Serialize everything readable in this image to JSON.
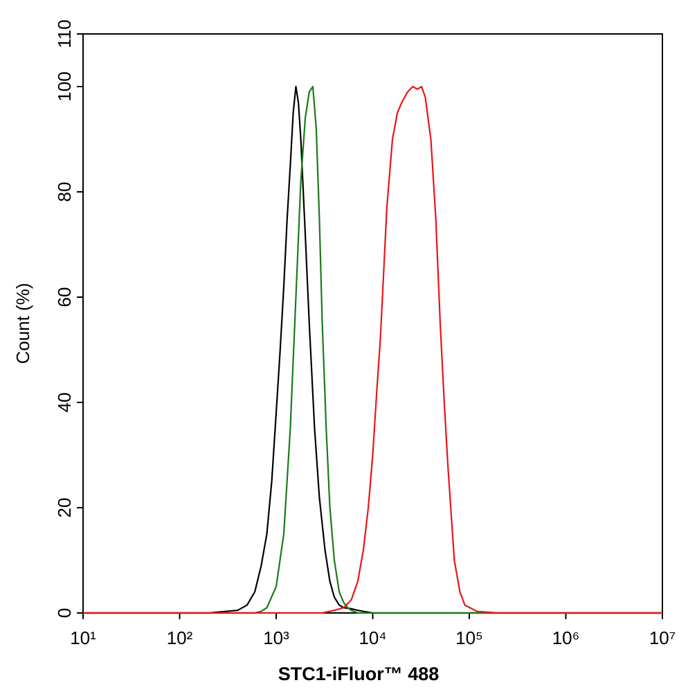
{
  "chart_data": {
    "type": "line",
    "x_label": "STC1-iFluor™ 488",
    "y_label": "Count  (%)",
    "xscale": "log",
    "xlim": [
      10,
      10000000
    ],
    "ylim": [
      0,
      110
    ],
    "xticks": [
      {
        "value": 10,
        "label": "10¹"
      },
      {
        "value": 100,
        "label": "10²"
      },
      {
        "value": 1000,
        "label": "10³"
      },
      {
        "value": 10000,
        "label": "10⁴"
      },
      {
        "value": 100000,
        "label": "10⁵"
      },
      {
        "value": 1000000,
        "label": "10⁶"
      },
      {
        "value": 10000000,
        "label": "10⁷"
      }
    ],
    "yticks": [
      0,
      20,
      40,
      60,
      80,
      100,
      110
    ],
    "series": [
      {
        "color": "#000000",
        "x": [
          10,
          200,
          300,
          400,
          500,
          600,
          700,
          800,
          900,
          1000,
          1100,
          1200,
          1300,
          1400,
          1500,
          1600,
          1700,
          1800,
          2000,
          2200,
          2500,
          2800,
          3200,
          3600,
          4000,
          4500,
          5000,
          6000,
          7000,
          8000,
          10000,
          10000000
        ],
        "values": [
          0,
          0,
          0.3,
          0.5,
          1.5,
          4,
          9,
          15,
          25,
          38,
          50,
          62,
          75,
          85,
          95,
          100,
          97,
          90,
          72,
          55,
          35,
          22,
          12,
          6,
          3,
          1.5,
          1,
          0.8,
          0.5,
          0.3,
          0,
          0
        ]
      },
      {
        "color": "#1a7a1a",
        "x": [
          10,
          600,
          700,
          800,
          1000,
          1200,
          1400,
          1600,
          1800,
          2000,
          2200,
          2400,
          2600,
          2800,
          3000,
          3300,
          3600,
          4000,
          4500,
          5000,
          5500,
          6000,
          7000,
          10000000
        ],
        "values": [
          0,
          0,
          0.3,
          1,
          5,
          15,
          35,
          60,
          82,
          94,
          99,
          100,
          92,
          75,
          55,
          35,
          20,
          10,
          4,
          2,
          1,
          0.5,
          0,
          0
        ]
      },
      {
        "color": "#e8141a",
        "x": [
          10,
          3000,
          4000,
          5000,
          6000,
          7000,
          8000,
          9000,
          10000,
          11000,
          12000,
          13000,
          14000,
          16000,
          18000,
          20000,
          23000,
          26000,
          29000,
          32000,
          35000,
          40000,
          45000,
          50000,
          55000,
          60000,
          70000,
          80000,
          90000,
          120000,
          200000,
          10000000
        ],
        "values": [
          0,
          0,
          0.5,
          1,
          2.5,
          6,
          12,
          20,
          30,
          42,
          52,
          65,
          77,
          90,
          95,
          97,
          99,
          100,
          99.5,
          100,
          98,
          90,
          75,
          55,
          40,
          28,
          10,
          4,
          1.5,
          0.3,
          0,
          0
        ]
      }
    ]
  }
}
